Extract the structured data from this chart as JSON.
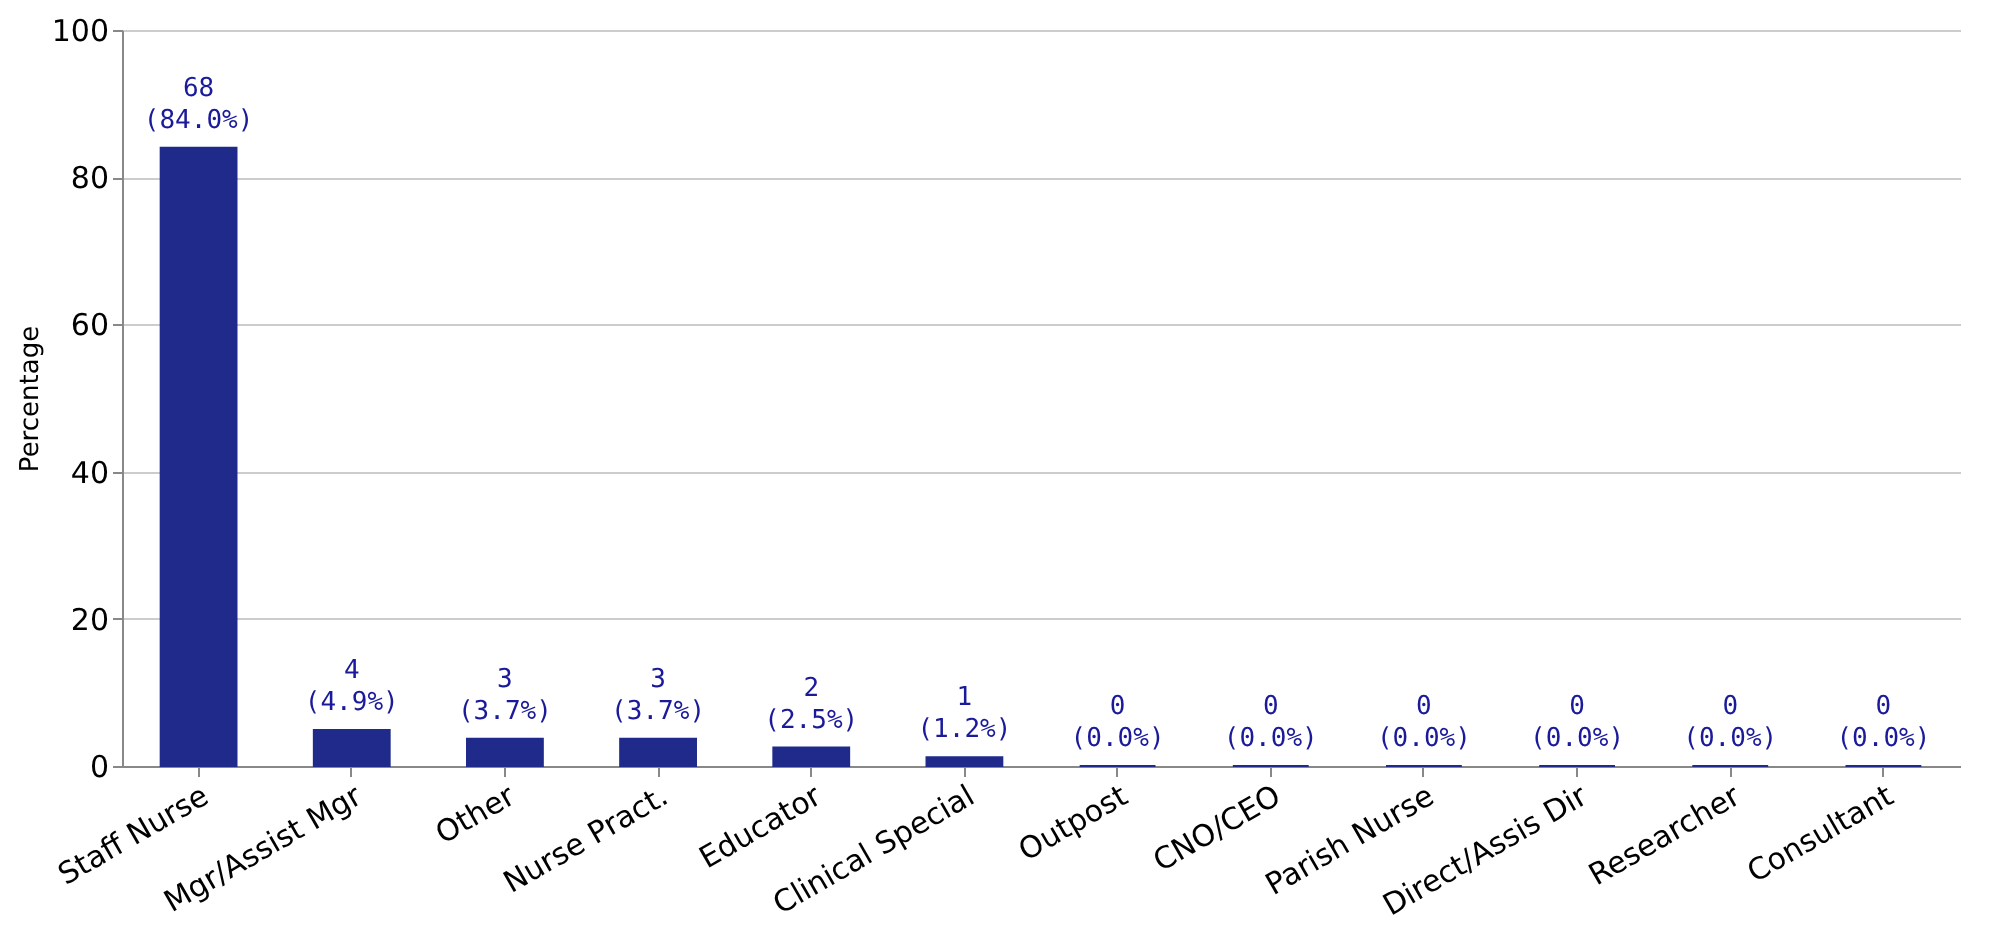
{
  "chart_data": {
    "type": "bar",
    "ylabel": "Percentage",
    "categories": [
      "Staff Nurse",
      "Mgr/Assist Mgr",
      "Other",
      "Nurse Pract.",
      "Educator",
      "Clinical Special",
      "Outpost",
      "CNO/CEO",
      "Parish Nurse",
      "Direct/Assis Dir",
      "Researcher",
      "Consultant"
    ],
    "values": [
      84.0,
      4.9,
      3.7,
      3.7,
      2.5,
      1.2,
      0,
      0,
      0,
      0,
      0,
      0
    ],
    "value_labels": [
      "68\n(84.0%)",
      "4\n(4.9%)",
      "3\n(3.7%)",
      "3\n(3.7%)",
      "2\n(2.5%)",
      "1\n(1.2%)",
      "0\n(0.0%)",
      "0\n(0.0%)",
      "0\n(0.0%)",
      "0\n(0.0%)",
      "0\n(0.0%)",
      "0\n(0.0%)"
    ],
    "color": "#1f2a8a",
    "ylim": [
      0,
      100
    ],
    "yticks": [
      0,
      20,
      40,
      60,
      80,
      100
    ],
    "grid": "y"
  }
}
